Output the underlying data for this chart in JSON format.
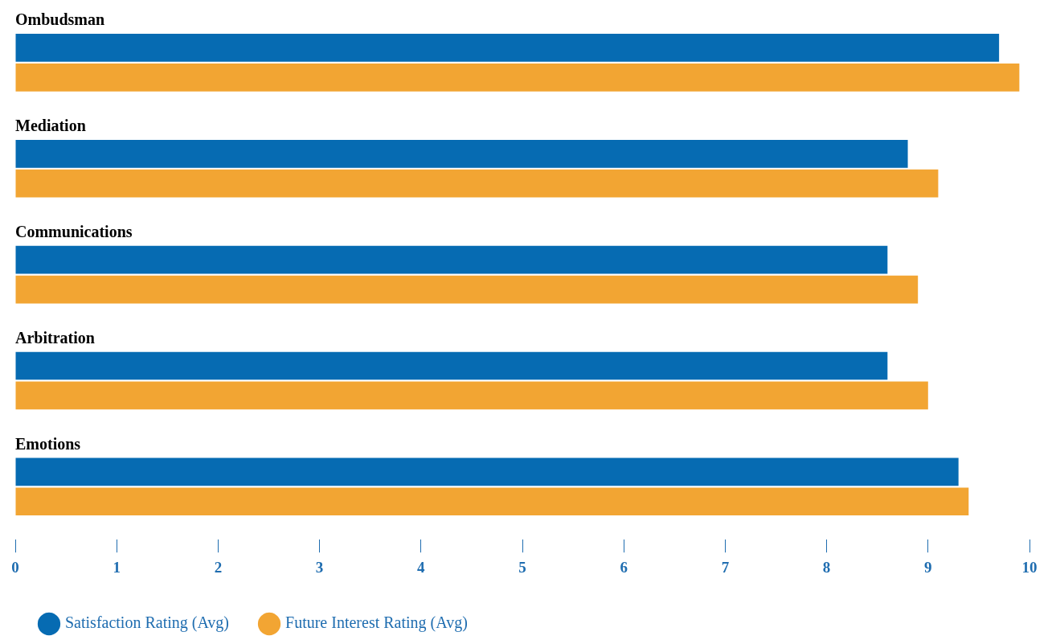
{
  "chart_data": {
    "type": "bar",
    "orientation": "horizontal",
    "categories": [
      "Ombudsman",
      "Mediation",
      "Communications",
      "Arbitration",
      "Emotions"
    ],
    "series": [
      {
        "name": "Satisfaction Rating (Avg)",
        "color": "#066bb2",
        "values": [
          9.7,
          8.8,
          8.6,
          8.6,
          9.3
        ]
      },
      {
        "name": "Future Interest Rating (Avg)",
        "color": "#f2a533",
        "values": [
          9.9,
          9.1,
          8.9,
          9.0,
          9.4
        ]
      }
    ],
    "xlim": [
      0,
      10
    ],
    "xticks": [
      0,
      1,
      2,
      3,
      4,
      5,
      6,
      7,
      8,
      9,
      10
    ],
    "legend": "bottom left"
  }
}
